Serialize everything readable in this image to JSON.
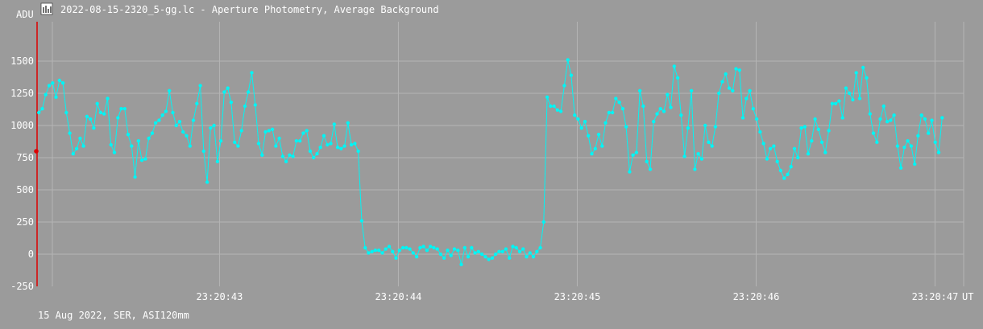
{
  "window": {
    "title": "2022-08-15-2320_5-gg.lc - Aperture Photometry, Average Background"
  },
  "footer": {
    "caption": "15 Aug 2022, SER, ASI120mm"
  },
  "colors": {
    "background": "#9b9b9b",
    "grid": "#b4b4b4",
    "series": "#00f5f5",
    "marker_line": "#dd0000",
    "text": "#ffffff"
  },
  "icons": {
    "title": "chart-app-icon"
  },
  "chart_data": {
    "type": "line",
    "ylabel": "ADU",
    "xlabel": "UT",
    "ylim": [
      -250,
      1800
    ],
    "y_ticks": [
      -250,
      0,
      250,
      500,
      750,
      1000,
      1250,
      1500
    ],
    "x_ticks": [
      {
        "t": 43,
        "label": "23:20:43"
      },
      {
        "t": 44,
        "label": "23:20:44"
      },
      {
        "t": 45,
        "label": "23:20:45"
      },
      {
        "t": 46,
        "label": "23:20:46"
      },
      {
        "t": 47,
        "label": "23:20:47"
      }
    ],
    "xlim": [
      41.98,
      47.16
    ],
    "marker": {
      "t": 41.98,
      "value": 800
    },
    "grid": true,
    "series": [
      {
        "t_start": 41.99,
        "t_step": 0.0192,
        "values": [
          1100,
          1130,
          1240,
          1310,
          1330,
          1220,
          1350,
          1330,
          1100,
          940,
          780,
          820,
          900,
          840,
          1070,
          1050,
          980,
          1170,
          1100,
          1090,
          1210,
          850,
          790,
          1060,
          1130,
          1130,
          930,
          840,
          600,
          880,
          730,
          740,
          900,
          940,
          1020,
          1040,
          1080,
          1110,
          1270,
          1100,
          1000,
          1030,
          950,
          920,
          840,
          1040,
          1170,
          1310,
          800,
          560,
          980,
          1000,
          720,
          880,
          1260,
          1290,
          1180,
          870,
          840,
          960,
          1150,
          1260,
          1410,
          1160,
          860,
          770,
          950,
          960,
          970,
          840,
          900,
          760,
          720,
          770,
          760,
          880,
          880,
          940,
          960,
          800,
          750,
          780,
          830,
          920,
          850,
          860,
          1010,
          830,
          820,
          840,
          1020,
          850,
          860,
          800,
          260,
          50,
          10,
          20,
          30,
          30,
          10,
          40,
          60,
          20,
          -30,
          30,
          50,
          50,
          40,
          10,
          -20,
          50,
          60,
          30,
          60,
          50,
          40,
          0,
          -30,
          30,
          -10,
          40,
          30,
          -80,
          50,
          -20,
          50,
          10,
          20,
          0,
          -20,
          -40,
          -30,
          0,
          20,
          20,
          40,
          -30,
          60,
          50,
          20,
          40,
          -20,
          10,
          -20,
          20,
          50,
          250,
          1220,
          1150,
          1150,
          1120,
          1110,
          1310,
          1510,
          1390,
          1080,
          1050,
          980,
          1030,
          920,
          780,
          820,
          930,
          840,
          1020,
          1100,
          1100,
          1210,
          1180,
          1130,
          990,
          640,
          770,
          790,
          1270,
          1150,
          720,
          660,
          1030,
          1090,
          1130,
          1110,
          1240,
          1140,
          1460,
          1370,
          1080,
          760,
          980,
          1270,
          660,
          780,
          740,
          1000,
          870,
          840,
          990,
          1250,
          1340,
          1400,
          1290,
          1270,
          1440,
          1430,
          1060,
          1210,
          1270,
          1130,
          1050,
          950,
          860,
          740,
          820,
          840,
          720,
          650,
          590,
          620,
          680,
          820,
          750,
          980,
          990,
          780,
          880,
          1050,
          970,
          870,
          790,
          960,
          1170,
          1170,
          1190,
          1060,
          1290,
          1250,
          1200,
          1410,
          1210,
          1450,
          1370,
          1090,
          940,
          870,
          1050,
          1150,
          1030,
          1040,
          1080,
          840,
          670,
          830,
          880,
          840,
          700,
          920,
          1080,
          1050,
          940,
          1040,
          870,
          790,
          1060
        ]
      }
    ]
  }
}
